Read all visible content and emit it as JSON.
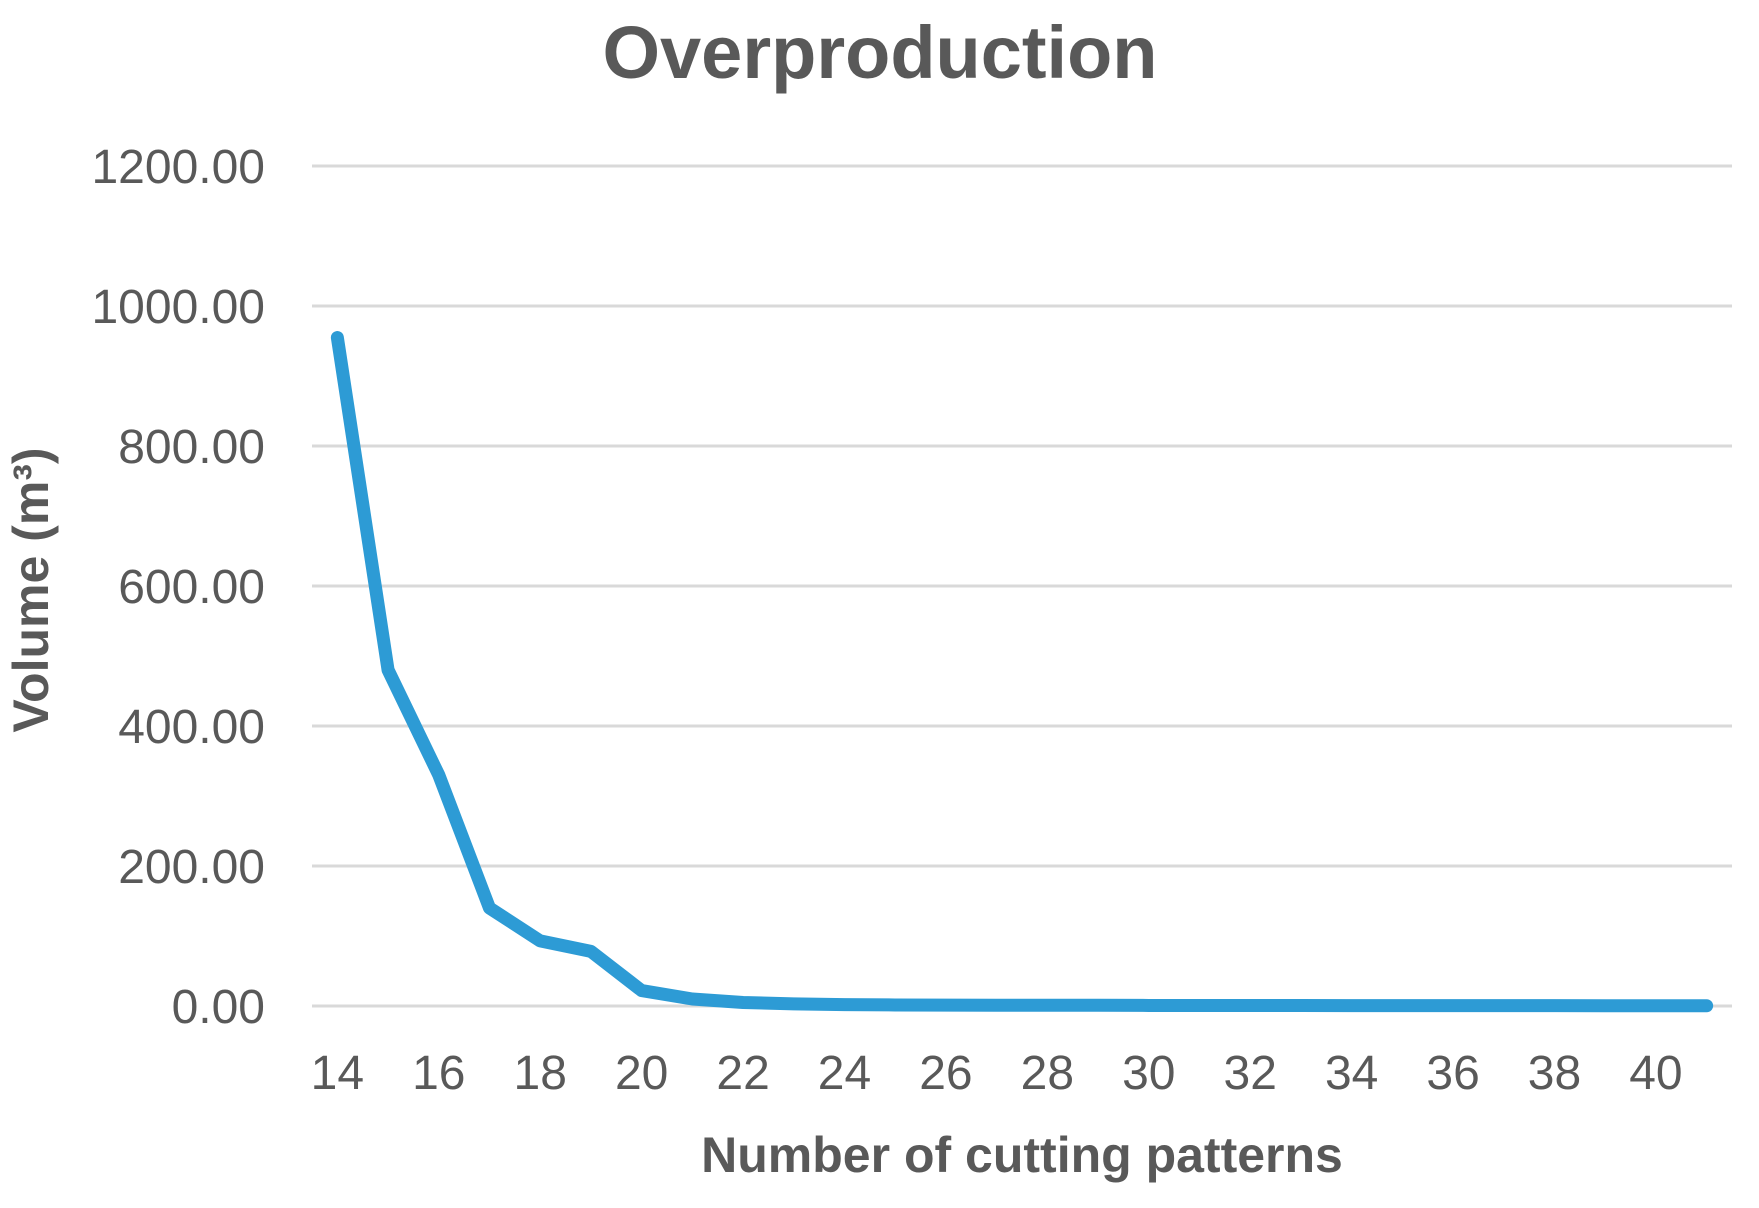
{
  "chart_data": {
    "type": "line",
    "title": "Overproduction",
    "xlabel": "Number of cutting patterns",
    "ylabel": "Volume (m³)",
    "x": [
      14,
      15,
      16,
      17,
      18,
      19,
      20,
      21,
      22,
      23,
      24,
      25,
      26,
      27,
      28,
      29,
      30,
      31,
      32,
      33,
      34,
      35,
      36,
      37,
      38,
      39,
      40,
      41
    ],
    "values": [
      955,
      480,
      330,
      140,
      93,
      78,
      22,
      10,
      5,
      3,
      2,
      1.5,
      1.2,
      1,
      1,
      1,
      0.8,
      0.8,
      0.7,
      0.7,
      0.6,
      0.6,
      0.5,
      0.5,
      0.5,
      0.4,
      0.4,
      0.4
    ],
    "x_tick_labels": [
      "14",
      "16",
      "18",
      "20",
      "22",
      "24",
      "26",
      "28",
      "30",
      "32",
      "34",
      "36",
      "38",
      "40"
    ],
    "x_tick_values": [
      14,
      16,
      18,
      20,
      22,
      24,
      26,
      28,
      30,
      32,
      34,
      36,
      38,
      40
    ],
    "y_ticks": [
      0,
      200,
      400,
      600,
      800,
      1000,
      1200
    ],
    "y_tick_labels": [
      "0.00",
      "200.00",
      "400.00",
      "600.00",
      "800.00",
      "1000.00",
      "1200.00"
    ],
    "xlim": [
      13.5,
      41.5
    ],
    "ylim": [
      0,
      1200
    ],
    "grid": "horizontal-only",
    "legend": "none",
    "colors": {
      "series_line": "#2D9BD5",
      "gridline": "#D9D9D9",
      "text": "#595959"
    }
  }
}
